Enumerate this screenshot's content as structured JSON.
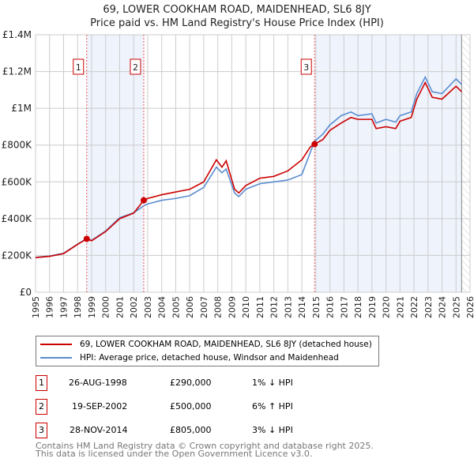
{
  "chart_data": {
    "type": "line",
    "title": "69, LOWER COOKHAM ROAD, MAIDENHEAD, SL6 8JY",
    "subtitle": "Price paid vs. HM Land Registry's House Price Index (HPI)",
    "xlim": [
      1995,
      2026
    ],
    "ylim": [
      0,
      1400000
    ],
    "y_ticks": [
      {
        "v": 0,
        "label": "£0"
      },
      {
        "v": 200000,
        "label": "£200K"
      },
      {
        "v": 400000,
        "label": "£400K"
      },
      {
        "v": 600000,
        "label": "£600K"
      },
      {
        "v": 800000,
        "label": "£800K"
      },
      {
        "v": 1000000,
        "label": "£1M"
      },
      {
        "v": 1200000,
        "label": "£1.2M"
      },
      {
        "v": 1400000,
        "label": "£1.4M"
      }
    ],
    "x_ticks": [
      "1995",
      "1996",
      "1997",
      "1998",
      "1999",
      "2000",
      "2001",
      "2002",
      "2003",
      "2004",
      "2005",
      "2006",
      "2007",
      "2008",
      "2009",
      "2010",
      "2011",
      "2012",
      "2013",
      "2014",
      "2015",
      "2016",
      "2017",
      "2018",
      "2019",
      "2020",
      "2021",
      "2022",
      "2023",
      "2024",
      "2025",
      "2026"
    ],
    "grid": true,
    "series": [
      {
        "name": "69, LOWER COOKHAM ROAD, MAIDENHEAD, SL6 8JY (detached house)",
        "color": "#cc0000",
        "x": [
          1995,
          1996,
          1997,
          1998,
          1998.65,
          1999,
          2000,
          2001,
          2002,
          2002.72,
          2003,
          2004,
          2005,
          2006,
          2007,
          2007.9,
          2008.3,
          2008.6,
          2009.2,
          2009.5,
          2010,
          2011,
          2012,
          2013,
          2014,
          2014.6,
          2014.9,
          2015.5,
          2016,
          2016.8,
          2017.5,
          2018,
          2019,
          2019.3,
          2020,
          2020.7,
          2021,
          2021.8,
          2022.2,
          2022.8,
          2023.3,
          2024,
          2025,
          2025.4
        ],
        "y": [
          188000,
          195000,
          210000,
          260000,
          290000,
          280000,
          330000,
          400000,
          430000,
          500000,
          510000,
          530000,
          545000,
          560000,
          600000,
          720000,
          680000,
          715000,
          560000,
          540000,
          580000,
          620000,
          630000,
          660000,
          720000,
          790000,
          805000,
          830000,
          880000,
          920000,
          950000,
          940000,
          940000,
          890000,
          900000,
          890000,
          930000,
          950000,
          1050000,
          1140000,
          1060000,
          1050000,
          1120000,
          1090000
        ]
      },
      {
        "name": "HPI: Average price, detached house, Windsor and Maidenhead",
        "color": "#5b8dd0",
        "x": [
          1995,
          1996,
          1997,
          1998,
          1998.65,
          1999,
          2000,
          2001,
          2002,
          2002.72,
          2003,
          2004,
          2005,
          2006,
          2007,
          2007.9,
          2008.3,
          2008.6,
          2009.2,
          2009.5,
          2010,
          2011,
          2012,
          2013,
          2014,
          2014.6,
          2014.9,
          2015.5,
          2016,
          2016.8,
          2017.5,
          2018,
          2019,
          2019.3,
          2020,
          2020.7,
          2021,
          2021.8,
          2022.2,
          2022.8,
          2023.3,
          2024,
          2025,
          2025.4
        ],
        "y": [
          190000,
          197000,
          212000,
          262000,
          292000,
          282000,
          333000,
          405000,
          432000,
          470000,
          480000,
          500000,
          510000,
          525000,
          570000,
          680000,
          650000,
          670000,
          540000,
          520000,
          560000,
          590000,
          600000,
          610000,
          640000,
          760000,
          820000,
          860000,
          910000,
          960000,
          980000,
          960000,
          970000,
          920000,
          940000,
          925000,
          960000,
          980000,
          1080000,
          1170000,
          1090000,
          1080000,
          1160000,
          1130000
        ]
      }
    ],
    "sales": [
      {
        "label": "1",
        "x": 1998.65,
        "price": 290000,
        "date": "26-AUG-1998",
        "price_label": "£290,000",
        "hpi": "1% ↓ HPI"
      },
      {
        "label": "2",
        "x": 2002.72,
        "price": 500000,
        "date": "19-SEP-2002",
        "price_label": "£500,000",
        "hpi": "6% ↑ HPI"
      },
      {
        "label": "3",
        "x": 2014.91,
        "price": 805000,
        "date": "28-NOV-2014",
        "price_label": "£805,000",
        "hpi": "3% ↓ HPI"
      }
    ],
    "shaded_ranges": [
      [
        1998.65,
        2002.72
      ],
      [
        2014.91,
        2025.4
      ]
    ],
    "forecast_start": 2025.4,
    "legend_placement": "below"
  },
  "footer": {
    "line1": "Contains HM Land Registry data © Crown copyright and database right 2025.",
    "line2": "This data is licensed under the Open Government Licence v3.0."
  }
}
